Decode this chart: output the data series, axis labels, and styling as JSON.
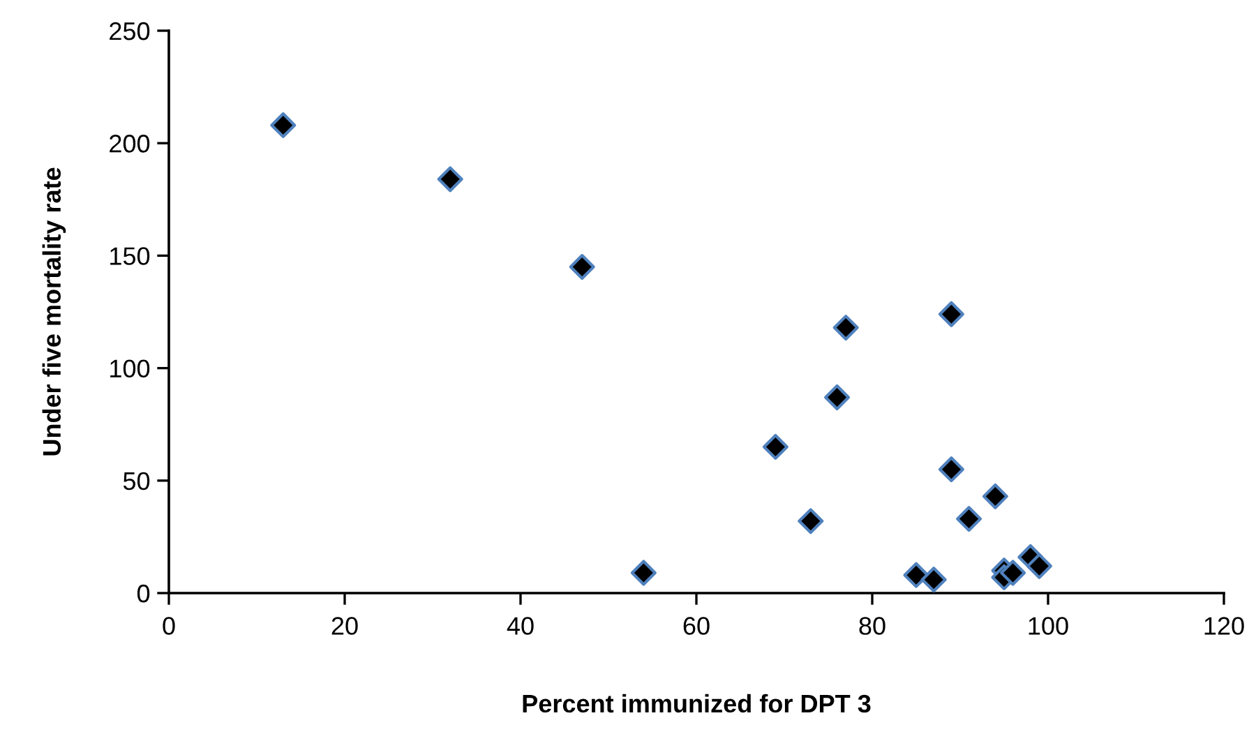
{
  "chart_data": {
    "type": "scatter",
    "xlabel": "Percent immunized for DPT 3",
    "ylabel": "Under five mortality rate",
    "x": [
      13,
      32,
      47,
      54,
      77,
      89,
      76,
      69,
      89,
      94,
      73,
      91,
      85,
      87,
      95,
      95,
      96,
      98,
      99
    ],
    "series": [
      {
        "color": "#000000",
        "values": [
          208,
          184,
          145,
          9,
          118,
          124,
          87,
          65,
          55,
          43,
          32,
          33,
          8,
          6,
          10,
          7,
          9,
          16,
          12
        ]
      }
    ],
    "marker": "diamond",
    "xlim": [
      0,
      120
    ],
    "xticks": [
      0,
      20,
      40,
      60,
      80,
      100,
      120
    ],
    "ylim": [
      0,
      250
    ],
    "yticks": [
      0,
      50,
      100,
      150,
      200,
      250
    ],
    "grid": false
  }
}
